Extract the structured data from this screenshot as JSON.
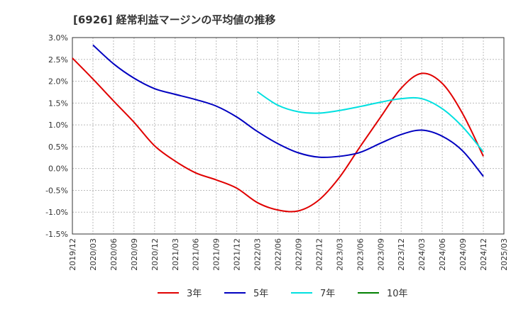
{
  "chart_data": {
    "type": "line",
    "title": "[6926]  経常利益マージンの平均値の推移",
    "xlabel": "",
    "ylabel": "",
    "x_ticks": [
      "2019/12",
      "2020/03",
      "2020/06",
      "2020/09",
      "2020/12",
      "2021/03",
      "2021/06",
      "2021/09",
      "2021/12",
      "2022/03",
      "2022/06",
      "2022/09",
      "2022/12",
      "2023/03",
      "2023/06",
      "2023/09",
      "2023/12",
      "2024/03",
      "2024/06",
      "2024/09",
      "2024/12",
      "2025/03"
    ],
    "y_ticks": [
      "3.0%",
      "2.5%",
      "2.0%",
      "1.5%",
      "1.0%",
      "0.5%",
      "0.0%",
      "-0.5%",
      "-1.0%",
      "-1.5%"
    ],
    "ylim": [
      -1.5,
      3.0
    ],
    "grid": true,
    "legend_position": "bottom",
    "series": [
      {
        "name": "3年",
        "color": "#e00000",
        "x": [
          "2019/12",
          "2020/03",
          "2020/06",
          "2020/09",
          "2020/12",
          "2021/03",
          "2021/06",
          "2021/09",
          "2021/12",
          "2022/03",
          "2022/06",
          "2022/09",
          "2022/12",
          "2023/03",
          "2023/06",
          "2023/09",
          "2023/12",
          "2024/03",
          "2024/06",
          "2024/09",
          "2024/12"
        ],
        "values": [
          2.53,
          2.05,
          1.55,
          1.06,
          0.52,
          0.17,
          -0.1,
          -0.26,
          -0.45,
          -0.78,
          -0.95,
          -0.97,
          -0.72,
          -0.2,
          0.5,
          1.18,
          1.84,
          2.18,
          1.95,
          1.25,
          0.28
        ]
      },
      {
        "name": "5年",
        "color": "#0000c0",
        "x": [
          "2020/03",
          "2020/06",
          "2020/09",
          "2020/12",
          "2021/03",
          "2021/06",
          "2021/09",
          "2021/12",
          "2022/03",
          "2022/06",
          "2022/09",
          "2022/12",
          "2023/03",
          "2023/06",
          "2023/09",
          "2023/12",
          "2024/03",
          "2024/06",
          "2024/09",
          "2024/12"
        ],
        "values": [
          2.83,
          2.4,
          2.07,
          1.83,
          1.7,
          1.58,
          1.43,
          1.18,
          0.85,
          0.57,
          0.36,
          0.26,
          0.28,
          0.37,
          0.58,
          0.78,
          0.88,
          0.74,
          0.4,
          -0.18
        ]
      },
      {
        "name": "7年",
        "color": "#00e0e0",
        "x": [
          "2022/03",
          "2022/06",
          "2022/09",
          "2022/12",
          "2023/03",
          "2023/06",
          "2023/09",
          "2023/12",
          "2024/03",
          "2024/06",
          "2024/09",
          "2024/12"
        ],
        "values": [
          1.76,
          1.45,
          1.3,
          1.27,
          1.33,
          1.42,
          1.52,
          1.6,
          1.6,
          1.37,
          0.95,
          0.38
        ]
      },
      {
        "name": "10年",
        "color": "#008000",
        "x": [],
        "values": []
      }
    ]
  }
}
